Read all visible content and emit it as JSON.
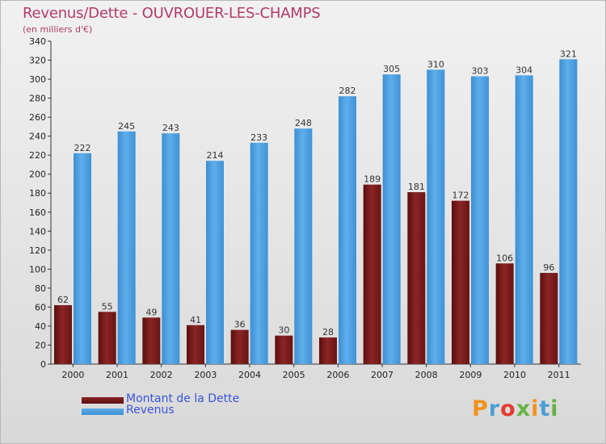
{
  "title": "Revenus/Dette - OUVROUER-LES-CHAMPS",
  "subtitle": "(en milliers d'€)",
  "logo": {
    "text": "Proxiti",
    "colors": [
      "#f39221",
      "#4b9fd5",
      "#e53b2f",
      "#67b346",
      "#f39221",
      "#4b9fd5",
      "#67b346"
    ]
  },
  "colors": {
    "debt": "#7b1c1c",
    "revenue": "#4a9fe0",
    "title": "#b23b6a",
    "legend_text": "#3b55d9"
  },
  "chart_data": {
    "type": "bar",
    "categories": [
      "2000",
      "2001",
      "2002",
      "2003",
      "2004",
      "2005",
      "2006",
      "2007",
      "2008",
      "2009",
      "2010",
      "2011"
    ],
    "series": [
      {
        "name": "Montant de la Dette",
        "values": [
          62,
          55,
          49,
          41,
          36,
          30,
          28,
          189,
          181,
          172,
          106,
          96
        ]
      },
      {
        "name": "Revenus",
        "values": [
          222,
          245,
          243,
          214,
          233,
          248,
          282,
          305,
          310,
          303,
          304,
          321
        ]
      }
    ],
    "y_ticks": [
      0,
      20,
      40,
      60,
      80,
      100,
      120,
      140,
      160,
      180,
      200,
      220,
      240,
      260,
      280,
      300,
      320,
      340
    ],
    "ylim": [
      0,
      340
    ],
    "grid": false,
    "legend": "bottom-left",
    "data_labels": true
  }
}
